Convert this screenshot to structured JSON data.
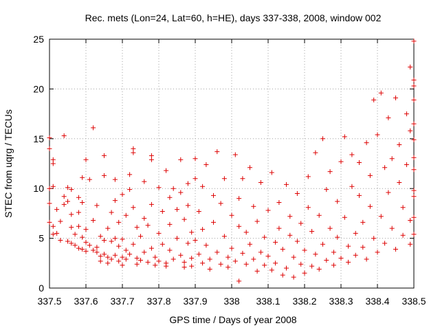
{
  "chart_data": {
    "type": "scatter",
    "title": "Rec. mets (Lon=24, Lat=60, h=HE), days 337-338, 2008, window 002",
    "xlabel": "GPS time / Days of year 2008",
    "ylabel": "STEC from uqrg / TECUs",
    "xlim": [
      337.5,
      338.5
    ],
    "ylim": [
      0,
      25
    ],
    "x_ticks": [
      "337.5",
      "337.6",
      "337.7",
      "337.8",
      "337.9",
      "338",
      "338.1",
      "338.2",
      "338.3",
      "338.4",
      "338.5"
    ],
    "y_ticks": [
      "0",
      "5",
      "10",
      "15",
      "20",
      "25"
    ],
    "grid": true,
    "marker": "+",
    "color": "#dd0000",
    "grid_color": "#a0a0a0",
    "series": [
      {
        "points": [
          [
            337.5,
            15.1
          ],
          [
            337.5,
            14.0
          ],
          [
            337.51,
            12.9
          ],
          [
            337.51,
            12.5
          ],
          [
            337.5,
            10.0
          ],
          [
            337.51,
            10.2
          ],
          [
            337.5,
            8.5
          ],
          [
            337.5,
            6.6
          ],
          [
            337.51,
            6.2
          ],
          [
            337.51,
            5.4
          ],
          [
            337.52,
            7.9
          ],
          [
            337.52,
            5.5
          ],
          [
            337.53,
            4.8
          ],
          [
            337.53,
            6.7
          ],
          [
            337.54,
            8.4
          ],
          [
            337.54,
            9.2
          ],
          [
            337.54,
            15.3
          ],
          [
            337.55,
            10.1
          ],
          [
            337.55,
            8.7
          ],
          [
            337.55,
            4.7
          ],
          [
            337.56,
            9.9
          ],
          [
            337.56,
            7.4
          ],
          [
            337.56,
            6.1
          ],
          [
            337.56,
            4.5
          ],
          [
            337.57,
            5.4
          ],
          [
            337.57,
            4.3
          ],
          [
            337.58,
            9.1
          ],
          [
            337.58,
            7.6
          ],
          [
            337.58,
            6.2
          ],
          [
            337.58,
            4.0
          ],
          [
            337.59,
            11.1
          ],
          [
            337.59,
            8.6
          ],
          [
            337.59,
            5.1
          ],
          [
            337.59,
            3.9
          ],
          [
            337.6,
            4.6
          ],
          [
            337.6,
            3.7
          ],
          [
            337.6,
            5.9
          ],
          [
            337.6,
            12.9
          ],
          [
            337.61,
            10.9
          ],
          [
            337.61,
            4.3
          ],
          [
            337.62,
            3.8
          ],
          [
            337.62,
            6.8
          ],
          [
            337.62,
            16.1
          ],
          [
            337.63,
            4.1
          ],
          [
            337.63,
            3.6
          ],
          [
            337.63,
            8.3
          ],
          [
            337.64,
            5.2
          ],
          [
            337.64,
            3.2
          ],
          [
            337.64,
            2.7
          ],
          [
            337.65,
            4.8
          ],
          [
            337.65,
            3.4
          ],
          [
            337.65,
            11.3
          ],
          [
            337.65,
            13.3
          ],
          [
            337.66,
            6.0
          ],
          [
            337.66,
            3.1
          ],
          [
            337.66,
            2.5
          ],
          [
            337.67,
            7.6
          ],
          [
            337.67,
            4.7
          ],
          [
            337.67,
            2.9
          ],
          [
            337.68,
            10.9
          ],
          [
            337.68,
            8.8
          ],
          [
            337.68,
            5.0
          ],
          [
            337.68,
            3.3
          ],
          [
            337.69,
            4.2
          ],
          [
            337.69,
            2.7
          ],
          [
            337.69,
            6.6
          ],
          [
            337.7,
            9.4
          ],
          [
            337.7,
            4.9
          ],
          [
            337.7,
            3.1
          ],
          [
            337.7,
            2.3
          ],
          [
            337.71,
            7.3
          ],
          [
            337.71,
            3.8
          ],
          [
            337.71,
            2.9
          ],
          [
            337.72,
            11.4
          ],
          [
            337.72,
            9.9
          ],
          [
            337.72,
            3.4
          ],
          [
            337.73,
            13.6
          ],
          [
            337.73,
            14.0
          ],
          [
            337.73,
            8.1
          ],
          [
            337.73,
            4.4
          ],
          [
            337.74,
            3.0
          ],
          [
            337.74,
            2.4
          ],
          [
            337.74,
            6.1
          ],
          [
            337.75,
            5.2
          ],
          [
            337.75,
            2.8
          ],
          [
            337.76,
            10.7
          ],
          [
            337.76,
            7.0
          ],
          [
            337.76,
            3.6
          ],
          [
            337.77,
            2.6
          ],
          [
            337.77,
            6.3
          ],
          [
            337.78,
            13.3
          ],
          [
            337.78,
            12.9
          ],
          [
            337.78,
            8.4
          ],
          [
            337.78,
            4.0
          ],
          [
            337.79,
            3.1
          ],
          [
            337.79,
            2.3
          ],
          [
            337.8,
            10.1
          ],
          [
            337.8,
            5.5
          ],
          [
            337.8,
            2.7
          ],
          [
            337.81,
            7.7
          ],
          [
            337.81,
            4.4
          ],
          [
            337.82,
            11.8
          ],
          [
            337.82,
            2.5
          ],
          [
            337.82,
            2.2
          ],
          [
            337.83,
            9.1
          ],
          [
            337.83,
            6.4
          ],
          [
            337.83,
            3.8
          ],
          [
            337.84,
            10.0
          ],
          [
            337.84,
            2.9
          ],
          [
            337.85,
            7.9
          ],
          [
            337.85,
            5.0
          ],
          [
            337.86,
            12.9
          ],
          [
            337.86,
            9.6
          ],
          [
            337.86,
            3.3
          ],
          [
            337.87,
            6.9
          ],
          [
            337.87,
            2.6
          ],
          [
            337.87,
            2.1
          ],
          [
            337.88,
            10.5
          ],
          [
            337.88,
            8.3
          ],
          [
            337.88,
            4.5
          ],
          [
            337.89,
            5.6
          ],
          [
            337.89,
            3.0
          ],
          [
            337.89,
            2.2
          ],
          [
            337.9,
            13.0
          ],
          [
            337.9,
            11.0
          ],
          [
            337.9,
            4.8
          ],
          [
            337.91,
            7.7
          ],
          [
            337.91,
            3.4
          ],
          [
            337.92,
            2.5
          ],
          [
            337.92,
            10.2
          ],
          [
            337.92,
            5.9
          ],
          [
            337.93,
            12.4
          ],
          [
            337.93,
            4.3
          ],
          [
            337.94,
            2.9
          ],
          [
            337.94,
            1.9
          ],
          [
            337.95,
            9.3
          ],
          [
            337.95,
            6.6
          ],
          [
            337.96,
            13.7
          ],
          [
            337.96,
            3.6
          ],
          [
            337.97,
            2.4
          ],
          [
            337.97,
            8.5
          ],
          [
            337.98,
            11.0
          ],
          [
            337.98,
            5.2
          ],
          [
            337.99,
            3.1
          ],
          [
            337.99,
            2.1
          ],
          [
            338.0,
            7.3
          ],
          [
            338.0,
            4.0
          ],
          [
            338.01,
            13.4
          ],
          [
            338.01,
            2.7
          ],
          [
            338.02,
            0.7
          ],
          [
            338.02,
            9.0
          ],
          [
            338.02,
            6.2
          ],
          [
            338.03,
            11.0
          ],
          [
            338.03,
            3.5
          ],
          [
            338.04,
            2.4
          ],
          [
            338.04,
            5.6
          ],
          [
            338.05,
            12.1
          ],
          [
            338.05,
            4.4
          ],
          [
            338.06,
            8.2
          ],
          [
            338.06,
            2.9
          ],
          [
            338.07,
            1.7
          ],
          [
            338.07,
            6.7
          ],
          [
            338.08,
            3.6
          ],
          [
            338.08,
            10.6
          ],
          [
            338.09,
            2.3
          ],
          [
            338.09,
            5.1
          ],
          [
            338.1,
            7.8
          ],
          [
            338.1,
            3.2
          ],
          [
            338.11,
            1.8
          ],
          [
            338.11,
            11.6
          ],
          [
            338.12,
            4.6
          ],
          [
            338.12,
            2.5
          ],
          [
            338.13,
            8.6
          ],
          [
            338.13,
            6.0
          ],
          [
            338.14,
            1.3
          ],
          [
            338.14,
            3.9
          ],
          [
            338.15,
            10.4
          ],
          [
            338.15,
            2.0
          ],
          [
            338.16,
            5.3
          ],
          [
            338.16,
            7.2
          ],
          [
            338.17,
            1.1
          ],
          [
            338.17,
            3.1
          ],
          [
            338.18,
            9.5
          ],
          [
            338.18,
            4.7
          ],
          [
            338.19,
            2.4
          ],
          [
            338.19,
            6.5
          ],
          [
            338.2,
            1.5
          ],
          [
            338.2,
            3.8
          ],
          [
            338.21,
            11.2
          ],
          [
            338.21,
            8.1
          ],
          [
            338.22,
            2.2
          ],
          [
            338.22,
            5.7
          ],
          [
            338.23,
            13.6
          ],
          [
            338.23,
            3.4
          ],
          [
            338.24,
            1.9
          ],
          [
            338.24,
            7.3
          ],
          [
            338.25,
            15.0
          ],
          [
            338.25,
            4.4
          ],
          [
            338.26,
            2.8
          ],
          [
            338.26,
            9.9
          ],
          [
            338.27,
            6.0
          ],
          [
            338.27,
            11.7
          ],
          [
            338.28,
            3.6
          ],
          [
            338.28,
            2.3
          ],
          [
            338.29,
            8.7
          ],
          [
            338.29,
            5.1
          ],
          [
            338.3,
            12.7
          ],
          [
            338.3,
            3.0
          ],
          [
            338.31,
            15.2
          ],
          [
            338.31,
            7.1
          ],
          [
            338.32,
            4.2
          ],
          [
            338.32,
            2.6
          ],
          [
            338.33,
            10.2
          ],
          [
            338.33,
            13.4
          ],
          [
            338.34,
            5.5
          ],
          [
            338.34,
            3.3
          ],
          [
            338.35,
            9.3
          ],
          [
            338.35,
            12.6
          ],
          [
            338.36,
            6.6
          ],
          [
            338.36,
            4.1
          ],
          [
            338.37,
            14.6
          ],
          [
            338.37,
            2.9
          ],
          [
            338.38,
            8.2
          ],
          [
            338.38,
            11.3
          ],
          [
            338.39,
            5.0
          ],
          [
            338.39,
            18.9
          ],
          [
            338.4,
            15.4
          ],
          [
            338.4,
            3.6
          ],
          [
            338.41,
            19.6
          ],
          [
            338.41,
            7.2
          ],
          [
            338.42,
            12.1
          ],
          [
            338.42,
            4.5
          ],
          [
            338.43,
            9.6
          ],
          [
            338.43,
            17.1
          ],
          [
            338.44,
            6.0
          ],
          [
            338.44,
            13.0
          ],
          [
            338.45,
            3.9
          ],
          [
            338.45,
            19.1
          ],
          [
            338.46,
            10.6
          ],
          [
            338.46,
            14.4
          ],
          [
            338.47,
            5.3
          ],
          [
            338.47,
            8.1
          ],
          [
            338.48,
            17.5
          ],
          [
            338.48,
            12.4
          ],
          [
            338.49,
            6.8
          ],
          [
            338.49,
            22.2
          ],
          [
            338.49,
            4.4
          ],
          [
            338.49,
            15.8
          ],
          [
            338.5,
            20.9
          ],
          [
            338.5,
            9.2
          ],
          [
            338.5,
            11.9
          ],
          [
            338.5,
            16.5
          ],
          [
            338.5,
            24.8
          ],
          [
            338.5,
            20.3
          ],
          [
            338.5,
            7.1
          ],
          [
            338.5,
            13.1
          ],
          [
            338.5,
            5.4
          ],
          [
            338.5,
            18.9
          ],
          [
            338.5,
            9.8
          ],
          [
            338.5,
            14.9
          ]
        ]
      }
    ]
  }
}
